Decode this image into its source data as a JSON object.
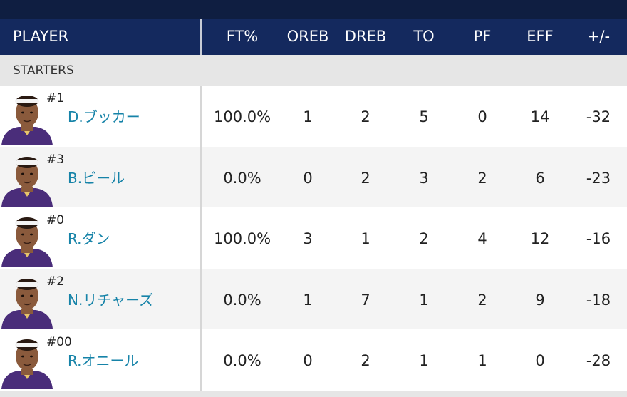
{
  "colors": {
    "header_bg": "#14295e",
    "top_strip": "#0f1e41",
    "section_bg": "#e6e6e6",
    "player_name": "#1683a8",
    "jersey_purple": "#4a2d7a"
  },
  "table": {
    "headers": {
      "player": "PLAYER",
      "ft_pct": "FT%",
      "oreb": "OREB",
      "dreb": "DREB",
      "to": "TO",
      "pf": "PF",
      "eff": "EFF",
      "plus_minus": "+/-"
    },
    "section_label": "STARTERS",
    "rows": [
      {
        "number": "#1",
        "name": "D.ブッカー",
        "ft_pct": "100.0%",
        "oreb": "1",
        "dreb": "2",
        "to": "5",
        "pf": "0",
        "eff": "14",
        "plus_minus": "-32",
        "avatar_icon": "player-headshot-icon"
      },
      {
        "number": "#3",
        "name": "B.ビール",
        "ft_pct": "0.0%",
        "oreb": "0",
        "dreb": "2",
        "to": "3",
        "pf": "2",
        "eff": "6",
        "plus_minus": "-23",
        "avatar_icon": "player-headshot-icon"
      },
      {
        "number": "#0",
        "name": "R.ダン",
        "ft_pct": "100.0%",
        "oreb": "3",
        "dreb": "1",
        "to": "2",
        "pf": "4",
        "eff": "12",
        "plus_minus": "-16",
        "avatar_icon": "player-headshot-icon"
      },
      {
        "number": "#2",
        "name": "N.リチャーズ",
        "ft_pct": "0.0%",
        "oreb": "1",
        "dreb": "7",
        "to": "1",
        "pf": "2",
        "eff": "9",
        "plus_minus": "-18",
        "avatar_icon": "player-headshot-icon"
      },
      {
        "number": "#00",
        "name": "R.オニール",
        "ft_pct": "0.0%",
        "oreb": "0",
        "dreb": "2",
        "to": "1",
        "pf": "1",
        "eff": "0",
        "plus_minus": "-28",
        "avatar_icon": "player-headshot-icon"
      }
    ]
  }
}
